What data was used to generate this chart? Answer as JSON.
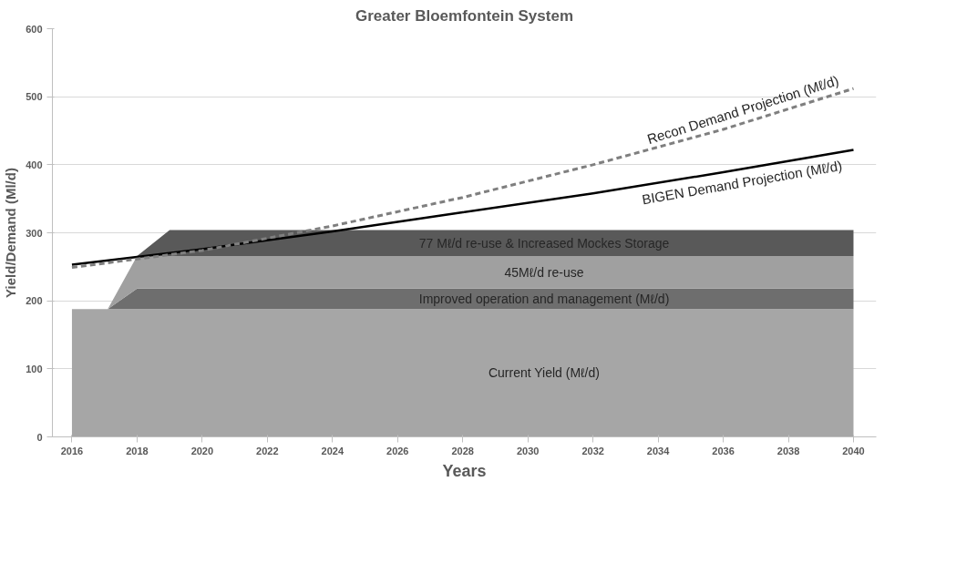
{
  "chart_data": {
    "type": "area",
    "title": "Greater Bloemfontein System",
    "xlabel": "Years",
    "ylabel": "Yield/Demand (Ml/d)",
    "stacked": true,
    "x": [
      2016,
      2017.1,
      2018,
      2019,
      2040
    ],
    "series": [
      {
        "name": "Current Yield (Mℓ/d)",
        "color": "#a6a6a6",
        "values": [
          188,
          188,
          188,
          188,
          188
        ]
      },
      {
        "name": "Improved operation and management (Mℓ/d)",
        "color": "#6e6e6e",
        "values": [
          0,
          0,
          30,
          30,
          30
        ]
      },
      {
        "name": "45Mℓ/d re-use",
        "color": "#a0a0a0",
        "values": [
          0,
          0,
          48,
          48,
          48
        ]
      },
      {
        "name": "77 Mℓ/d re-use & Increased Mockes Storage",
        "color": "#595959",
        "values": [
          0,
          0,
          0,
          38,
          38
        ]
      },
      {
        "name": "BIGEN Demand Projection (Mℓ/d)",
        "type": "line",
        "line_style": "solid",
        "color": "#000000",
        "x": [
          2016,
          2020,
          2024,
          2028,
          2032,
          2036,
          2040
        ],
        "values": [
          253,
          276,
          302,
          330,
          358,
          389,
          422
        ]
      },
      {
        "name": "Recon Demand Projection (Mℓ/d)",
        "type": "line",
        "line_style": "dashed",
        "color": "#7f7f7f",
        "x": [
          2016,
          2020,
          2024,
          2028,
          2032,
          2036,
          2040
        ],
        "values": [
          249,
          274,
          310,
          352,
          400,
          452,
          512
        ]
      }
    ],
    "xlim": [
      2015.4,
      2040.7
    ],
    "xticks": [
      2016,
      2018,
      2020,
      2022,
      2024,
      2026,
      2028,
      2030,
      2032,
      2034,
      2036,
      2038,
      2040
    ],
    "ylim": [
      0,
      600
    ],
    "yticks": [
      0,
      100,
      200,
      300,
      400,
      500,
      600
    ],
    "grid": "y"
  }
}
